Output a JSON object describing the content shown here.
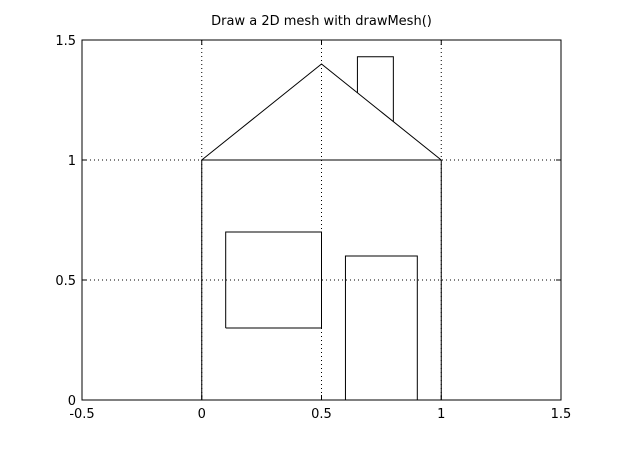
{
  "chart_data": {
    "type": "line",
    "title": "Draw a 2D mesh with drawMesh()",
    "xlabel": "",
    "ylabel": "",
    "xlim": [
      -0.5,
      1.5
    ],
    "ylim": [
      0,
      1.5
    ],
    "xticks": [
      -0.5,
      0,
      0.5,
      1,
      1.5
    ],
    "xtick_labels": [
      "-0.5",
      "0",
      "0.5",
      "1",
      "1.5"
    ],
    "yticks": [
      0,
      0.5,
      1,
      1.5
    ],
    "ytick_labels": [
      "0",
      "0.5",
      "1",
      "1.5"
    ],
    "grid": true,
    "grid_style": "dotted",
    "line_color": "#000000",
    "series": [
      {
        "values_xy": [
          [
            0,
            0
          ],
          [
            0,
            1
          ],
          [
            1,
            1
          ],
          [
            1,
            0
          ]
        ]
      },
      {
        "values_xy": [
          [
            0,
            1
          ],
          [
            0.5,
            1.4
          ],
          [
            1,
            1
          ]
        ]
      },
      {
        "values_xy": [
          [
            0.1,
            0.3
          ],
          [
            0.1,
            0.7
          ],
          [
            0.5,
            0.7
          ],
          [
            0.5,
            0.3
          ],
          [
            0.1,
            0.3
          ]
        ]
      },
      {
        "values_xy": [
          [
            0.6,
            0
          ],
          [
            0.6,
            0.6
          ],
          [
            0.9,
            0.6
          ],
          [
            0.9,
            0
          ]
        ]
      },
      {
        "values_xy": [
          [
            0.65,
            1.28
          ],
          [
            0.65,
            1.43
          ],
          [
            0.8,
            1.43
          ],
          [
            0.8,
            1.16
          ]
        ]
      }
    ]
  }
}
